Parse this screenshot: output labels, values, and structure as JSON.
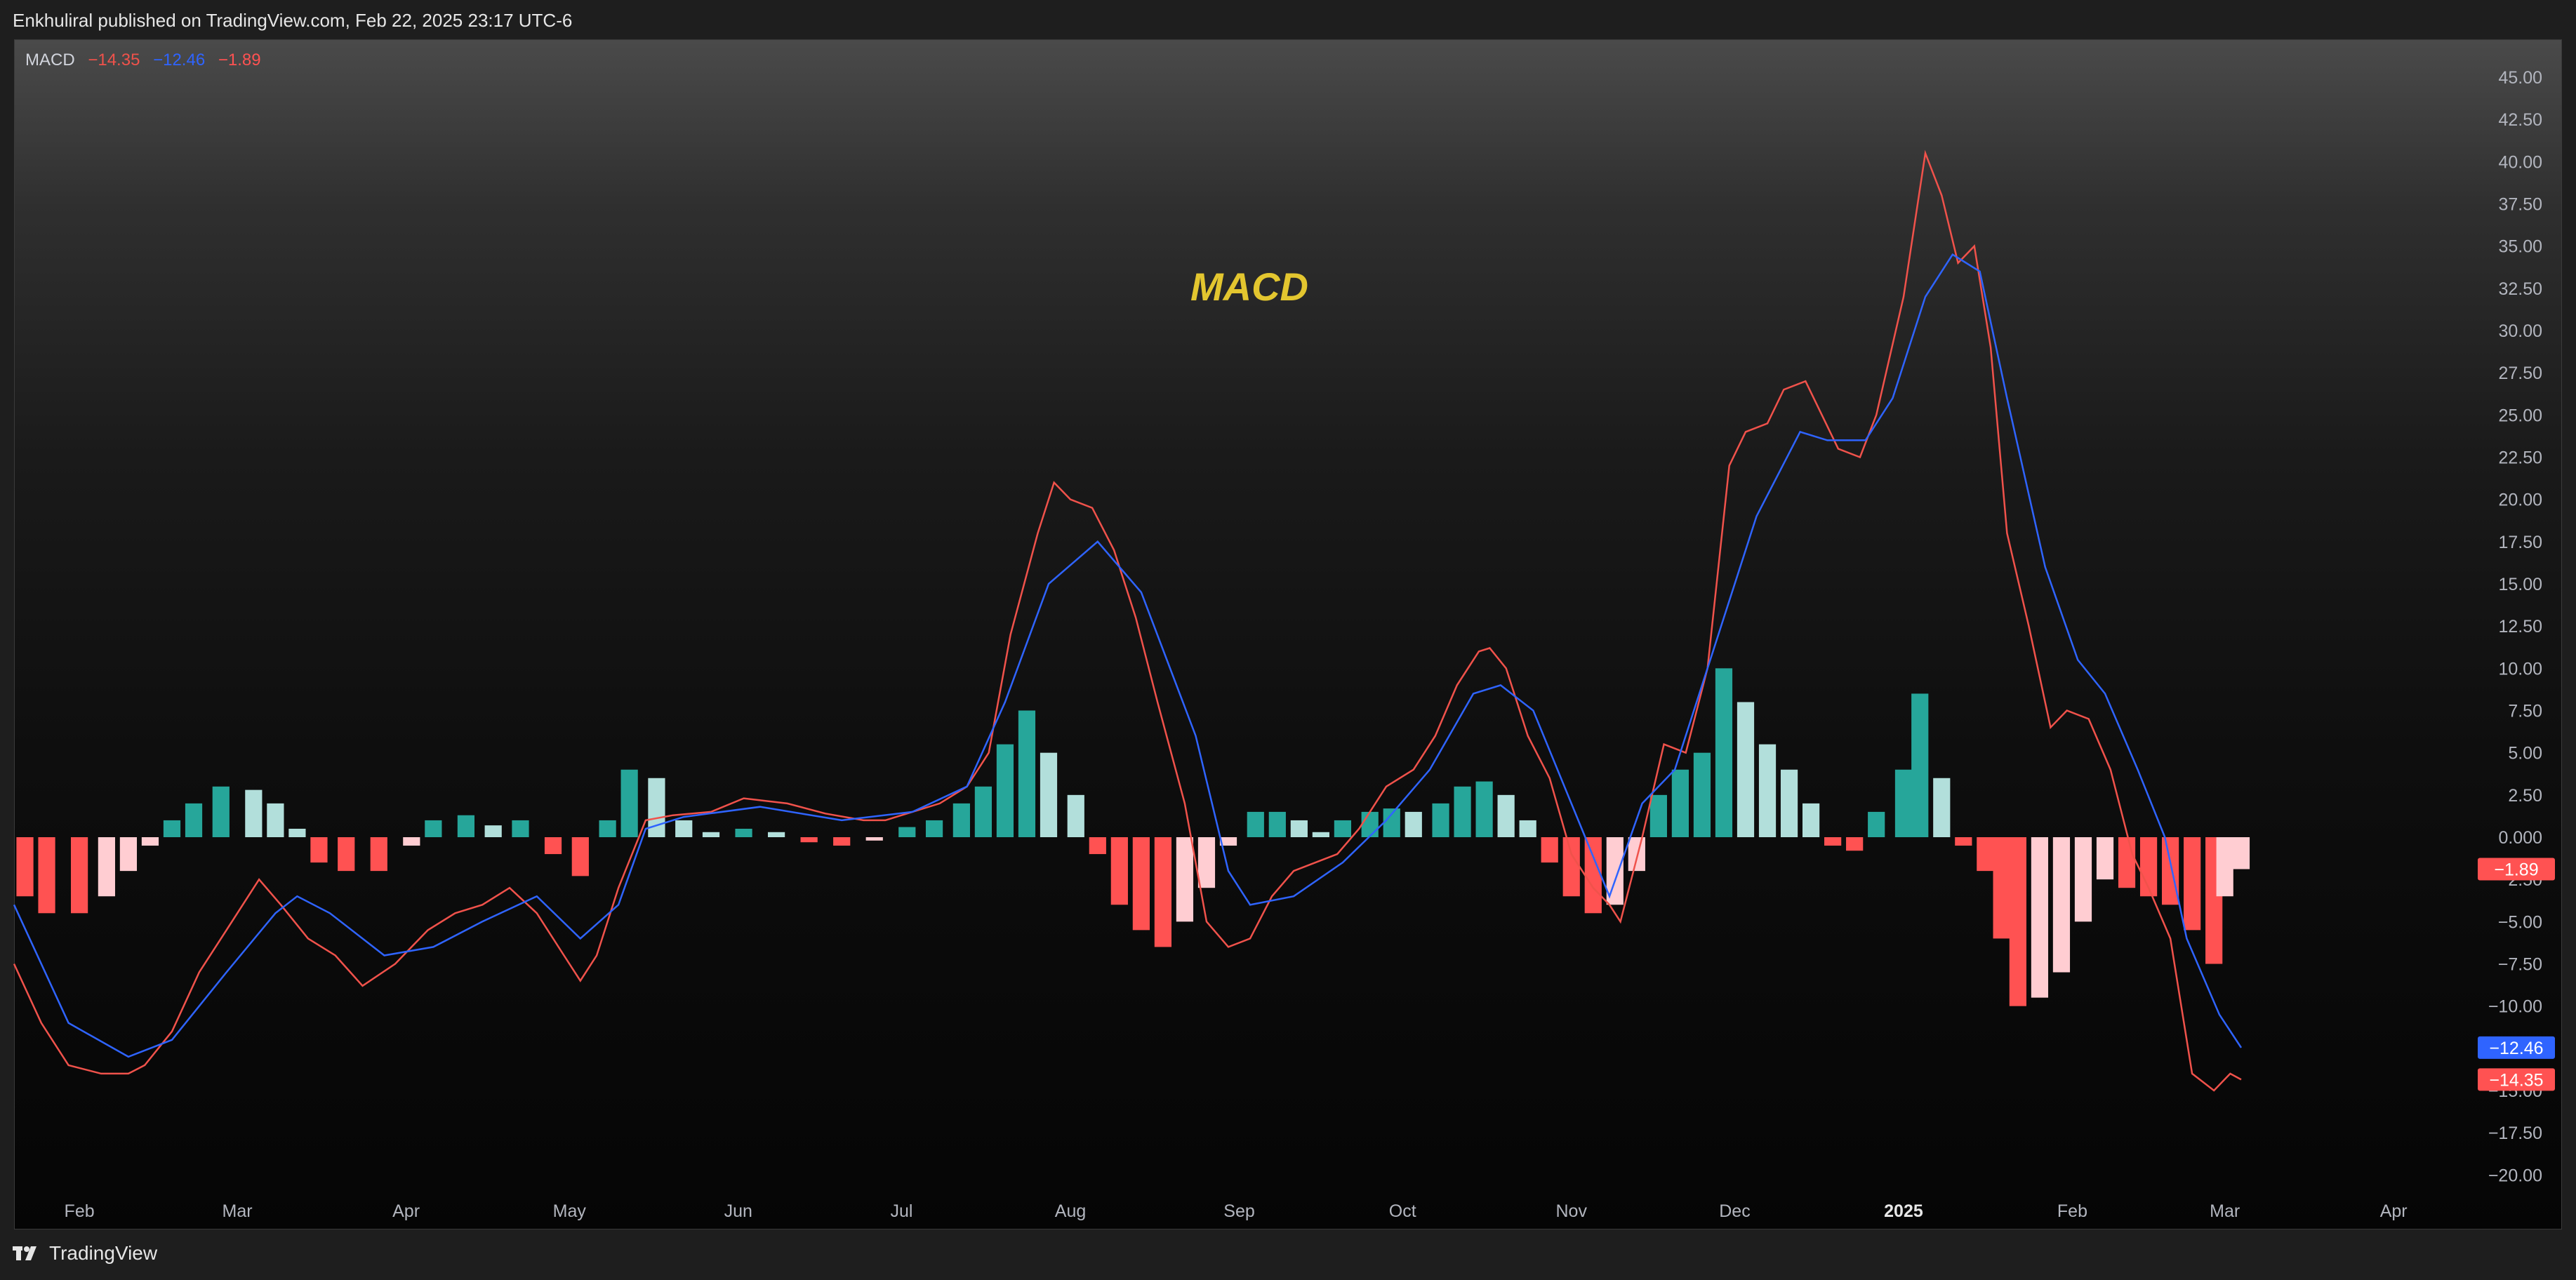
{
  "header": {
    "publish_note": "Enkhuliral published on TradingView.com, Feb 22, 2025 23:17 UTC-6"
  },
  "legend": {
    "name": "MACD",
    "macd_value": "−14.35",
    "signal_value": "−12.46",
    "hist_value": "−1.89"
  },
  "footer": {
    "brand": "TradingView",
    "logo_icon": "tradingview-logo-icon"
  },
  "colors": {
    "macd_line": "#f0524b",
    "signal_line": "#2f64ff",
    "hist_pos_strong": "#26a69a",
    "hist_pos_weak": "#b2dfdb",
    "hist_neg_strong": "#ff5252",
    "hist_neg_weak": "#ffcdd2",
    "title": "#e3c62f"
  },
  "chart_data": {
    "type": "line",
    "title": "MACD",
    "xlabel": "",
    "ylabel": "",
    "ylim": [
      -21,
      45
    ],
    "grid": false,
    "y_ticks": [
      "45.00",
      "42.50",
      "40.00",
      "37.50",
      "35.00",
      "32.50",
      "30.00",
      "27.50",
      "25.00",
      "22.50",
      "20.00",
      "17.50",
      "15.00",
      "12.50",
      "10.00",
      "7.50",
      "5.00",
      "2.50",
      "0.000",
      "−2.50",
      "−5.00",
      "−7.50",
      "−10.00",
      "−12.50",
      "−15.00",
      "−17.50",
      "−20.00"
    ],
    "y_tick_values": [
      45,
      42.5,
      40,
      37.5,
      35,
      32.5,
      30,
      27.5,
      25,
      22.5,
      20,
      17.5,
      15,
      12.5,
      10,
      7.5,
      5,
      2.5,
      0,
      -2.5,
      -5,
      -7.5,
      -10,
      -12.5,
      -15,
      -17.5,
      -20
    ],
    "x_labels": [
      {
        "label": "Feb",
        "x": "2024-02-01"
      },
      {
        "label": "Mar",
        "x": "2024-03-01"
      },
      {
        "label": "Apr",
        "x": "2024-04-01"
      },
      {
        "label": "May",
        "x": "2024-05-01"
      },
      {
        "label": "Jun",
        "x": "2024-06-01"
      },
      {
        "label": "Jul",
        "x": "2024-07-01"
      },
      {
        "label": "Aug",
        "x": "2024-08-01"
      },
      {
        "label": "Sep",
        "x": "2024-09-01"
      },
      {
        "label": "Oct",
        "x": "2024-10-01"
      },
      {
        "label": "Nov",
        "x": "2024-11-01"
      },
      {
        "label": "Dec",
        "x": "2024-12-01"
      },
      {
        "label": "2025",
        "x": "2025-01-01",
        "bold": true
      },
      {
        "label": "Feb",
        "x": "2025-02-01"
      },
      {
        "label": "Mar",
        "x": "2025-03-01"
      },
      {
        "label": "Apr",
        "x": "2025-04-01"
      }
    ],
    "xlim": [
      "2024-01-20",
      "2025-04-10"
    ],
    "price_tags": [
      {
        "text": "−1.89",
        "value": -1.89,
        "color": "#ff5252"
      },
      {
        "text": "−12.46",
        "value": -12.46,
        "color": "#2f64ff"
      },
      {
        "text": "−14.35",
        "value": -14.35,
        "color": "#ff5252"
      }
    ],
    "series": [
      {
        "name": "MACD",
        "color": "#f0524b",
        "points": [
          [
            "2024-01-20",
            -7.5
          ],
          [
            "2024-01-25",
            -11
          ],
          [
            "2024-01-30",
            -13.5
          ],
          [
            "2024-02-05",
            -14
          ],
          [
            "2024-02-10",
            -14
          ],
          [
            "2024-02-13",
            -13.5
          ],
          [
            "2024-02-18",
            -11.5
          ],
          [
            "2024-02-23",
            -8
          ],
          [
            "2024-02-28",
            -5.5
          ],
          [
            "2024-03-05",
            -2.5
          ],
          [
            "2024-03-09",
            -4
          ],
          [
            "2024-03-14",
            -6
          ],
          [
            "2024-03-19",
            -7
          ],
          [
            "2024-03-24",
            -8.8
          ],
          [
            "2024-03-30",
            -7.5
          ],
          [
            "2024-04-05",
            -5.5
          ],
          [
            "2024-04-10",
            -4.5
          ],
          [
            "2024-04-15",
            -4
          ],
          [
            "2024-04-20",
            -3
          ],
          [
            "2024-04-25",
            -4.5
          ],
          [
            "2024-04-30",
            -7
          ],
          [
            "2024-05-03",
            -8.5
          ],
          [
            "2024-05-06",
            -7
          ],
          [
            "2024-05-10",
            -3
          ],
          [
            "2024-05-15",
            1
          ],
          [
            "2024-05-20",
            1.3
          ],
          [
            "2024-05-27",
            1.5
          ],
          [
            "2024-06-02",
            2.3
          ],
          [
            "2024-06-10",
            2
          ],
          [
            "2024-06-17",
            1.4
          ],
          [
            "2024-06-24",
            1
          ],
          [
            "2024-06-28",
            1
          ],
          [
            "2024-07-03",
            1.5
          ],
          [
            "2024-07-08",
            2
          ],
          [
            "2024-07-13",
            3
          ],
          [
            "2024-07-17",
            5
          ],
          [
            "2024-07-21",
            12
          ],
          [
            "2024-07-26",
            18
          ],
          [
            "2024-07-29",
            21
          ],
          [
            "2024-08-01",
            20
          ],
          [
            "2024-08-05",
            19.5
          ],
          [
            "2024-08-09",
            17
          ],
          [
            "2024-08-13",
            13
          ],
          [
            "2024-08-17",
            8
          ],
          [
            "2024-08-22",
            2
          ],
          [
            "2024-08-26",
            -5
          ],
          [
            "2024-08-30",
            -6.5
          ],
          [
            "2024-09-03",
            -6
          ],
          [
            "2024-09-07",
            -3.5
          ],
          [
            "2024-09-11",
            -2
          ],
          [
            "2024-09-15",
            -1.5
          ],
          [
            "2024-09-19",
            -1
          ],
          [
            "2024-09-23",
            0.5
          ],
          [
            "2024-09-28",
            3
          ],
          [
            "2024-10-03",
            4
          ],
          [
            "2024-10-07",
            6
          ],
          [
            "2024-10-11",
            9
          ],
          [
            "2024-10-15",
            11
          ],
          [
            "2024-10-17",
            11.2
          ],
          [
            "2024-10-20",
            10
          ],
          [
            "2024-10-24",
            6
          ],
          [
            "2024-10-28",
            3.5
          ],
          [
            "2024-11-01",
            -1
          ],
          [
            "2024-11-05",
            -3
          ],
          [
            "2024-11-08",
            -4
          ],
          [
            "2024-11-10",
            -5
          ],
          [
            "2024-11-14",
            0
          ],
          [
            "2024-11-18",
            5.5
          ],
          [
            "2024-11-22",
            5
          ],
          [
            "2024-11-26",
            10
          ],
          [
            "2024-11-30",
            22
          ],
          [
            "2024-12-03",
            24
          ],
          [
            "2024-12-07",
            24.5
          ],
          [
            "2024-12-10",
            26.5
          ],
          [
            "2024-12-14",
            27
          ],
          [
            "2024-12-17",
            25
          ],
          [
            "2024-12-20",
            23
          ],
          [
            "2024-12-24",
            22.5
          ],
          [
            "2024-12-27",
            25
          ],
          [
            "2025-01-01",
            32
          ],
          [
            "2025-01-05",
            40.5
          ],
          [
            "2025-01-08",
            38
          ],
          [
            "2025-01-11",
            34
          ],
          [
            "2025-01-14",
            35
          ],
          [
            "2025-01-17",
            29
          ],
          [
            "2025-01-20",
            18
          ],
          [
            "2025-01-24",
            12.5
          ],
          [
            "2025-01-28",
            6.5
          ],
          [
            "2025-01-31",
            7.5
          ],
          [
            "2025-02-04",
            7
          ],
          [
            "2025-02-08",
            4
          ],
          [
            "2025-02-12",
            -1
          ],
          [
            "2025-02-15",
            -3
          ],
          [
            "2025-02-19",
            -6
          ],
          [
            "2025-02-23",
            -14
          ],
          [
            "2025-02-27",
            -15
          ],
          [
            "2025-03-02",
            -14
          ],
          [
            "2025-03-04",
            -14.35
          ]
        ]
      },
      {
        "name": "Signal",
        "color": "#2f64ff",
        "points": [
          [
            "2024-01-20",
            -4
          ],
          [
            "2024-01-30",
            -11
          ],
          [
            "2024-02-10",
            -13
          ],
          [
            "2024-02-18",
            -12
          ],
          [
            "2024-02-28",
            -8
          ],
          [
            "2024-03-08",
            -4.5
          ],
          [
            "2024-03-12",
            -3.5
          ],
          [
            "2024-03-18",
            -4.5
          ],
          [
            "2024-03-28",
            -7
          ],
          [
            "2024-04-06",
            -6.5
          ],
          [
            "2024-04-15",
            -5
          ],
          [
            "2024-04-25",
            -3.5
          ],
          [
            "2024-05-03",
            -6
          ],
          [
            "2024-05-10",
            -4
          ],
          [
            "2024-05-15",
            0.5
          ],
          [
            "2024-05-22",
            1.2
          ],
          [
            "2024-06-05",
            1.8
          ],
          [
            "2024-06-20",
            1
          ],
          [
            "2024-07-03",
            1.5
          ],
          [
            "2024-07-13",
            3
          ],
          [
            "2024-07-20",
            8
          ],
          [
            "2024-07-28",
            15
          ],
          [
            "2024-08-06",
            17.5
          ],
          [
            "2024-08-14",
            14.5
          ],
          [
            "2024-08-24",
            6
          ],
          [
            "2024-08-30",
            -2
          ],
          [
            "2024-09-03",
            -4
          ],
          [
            "2024-09-11",
            -3.5
          ],
          [
            "2024-09-20",
            -1.5
          ],
          [
            "2024-09-28",
            1
          ],
          [
            "2024-10-06",
            4
          ],
          [
            "2024-10-14",
            8.5
          ],
          [
            "2024-10-19",
            9
          ],
          [
            "2024-10-25",
            7.5
          ],
          [
            "2024-11-01",
            2
          ],
          [
            "2024-11-08",
            -3.5
          ],
          [
            "2024-11-14",
            2
          ],
          [
            "2024-11-20",
            4
          ],
          [
            "2024-11-28",
            12
          ],
          [
            "2024-12-05",
            19
          ],
          [
            "2024-12-13",
            24
          ],
          [
            "2024-12-18",
            23.5
          ],
          [
            "2024-12-25",
            23.5
          ],
          [
            "2024-12-30",
            26
          ],
          [
            "2025-01-05",
            32
          ],
          [
            "2025-01-10",
            34.5
          ],
          [
            "2025-01-15",
            33.5
          ],
          [
            "2025-01-20",
            26
          ],
          [
            "2025-01-27",
            16
          ],
          [
            "2025-02-02",
            10.5
          ],
          [
            "2025-02-07",
            8.5
          ],
          [
            "2025-02-13",
            4
          ],
          [
            "2025-02-18",
            0
          ],
          [
            "2025-02-22",
            -6
          ],
          [
            "2025-02-28",
            -10.5
          ],
          [
            "2025-03-04",
            -12.46
          ]
        ]
      },
      {
        "name": "Histogram",
        "type": "bar",
        "points": [
          [
            "2024-01-22",
            -3.5
          ],
          [
            "2024-01-26",
            -4.5
          ],
          [
            "2024-02-01",
            -4.5
          ],
          [
            "2024-02-06",
            -3.5
          ],
          [
            "2024-02-10",
            -2
          ],
          [
            "2024-02-14",
            -0.5
          ],
          [
            "2024-02-18",
            1
          ],
          [
            "2024-02-22",
            2
          ],
          [
            "2024-02-27",
            3
          ],
          [
            "2024-03-04",
            2.8
          ],
          [
            "2024-03-08",
            2
          ],
          [
            "2024-03-12",
            0.5
          ],
          [
            "2024-03-16",
            -1.5
          ],
          [
            "2024-03-21",
            -2
          ],
          [
            "2024-03-27",
            -2
          ],
          [
            "2024-04-02",
            -0.5
          ],
          [
            "2024-04-06",
            1
          ],
          [
            "2024-04-12",
            1.3
          ],
          [
            "2024-04-17",
            0.7
          ],
          [
            "2024-04-22",
            1
          ],
          [
            "2024-04-28",
            -1
          ],
          [
            "2024-05-03",
            -2.3
          ],
          [
            "2024-05-08",
            1
          ],
          [
            "2024-05-12",
            4
          ],
          [
            "2024-05-17",
            3.5
          ],
          [
            "2024-05-22",
            1
          ],
          [
            "2024-05-27",
            0.3
          ],
          [
            "2024-06-02",
            0.5
          ],
          [
            "2024-06-08",
            0.3
          ],
          [
            "2024-06-14",
            -0.3
          ],
          [
            "2024-06-20",
            -0.5
          ],
          [
            "2024-06-26",
            -0.2
          ],
          [
            "2024-07-02",
            0.6
          ],
          [
            "2024-07-07",
            1
          ],
          [
            "2024-07-12",
            2
          ],
          [
            "2024-07-16",
            3
          ],
          [
            "2024-07-20",
            5.5
          ],
          [
            "2024-07-24",
            7.5
          ],
          [
            "2024-07-28",
            5
          ],
          [
            "2024-08-02",
            2.5
          ],
          [
            "2024-08-06",
            -1
          ],
          [
            "2024-08-10",
            -4
          ],
          [
            "2024-08-14",
            -5.5
          ],
          [
            "2024-08-18",
            -6.5
          ],
          [
            "2024-08-22",
            -5
          ],
          [
            "2024-08-26",
            -3
          ],
          [
            "2024-08-30",
            -0.5
          ],
          [
            "2024-09-04",
            1.5
          ],
          [
            "2024-09-08",
            1.5
          ],
          [
            "2024-09-12",
            1
          ],
          [
            "2024-09-16",
            0.3
          ],
          [
            "2024-09-20",
            1
          ],
          [
            "2024-09-25",
            1.5
          ],
          [
            "2024-09-29",
            1.7
          ],
          [
            "2024-10-03",
            1.5
          ],
          [
            "2024-10-08",
            2
          ],
          [
            "2024-10-12",
            3
          ],
          [
            "2024-10-16",
            3.3
          ],
          [
            "2024-10-20",
            2.5
          ],
          [
            "2024-10-24",
            1
          ],
          [
            "2024-10-28",
            -1.5
          ],
          [
            "2024-11-01",
            -3.5
          ],
          [
            "2024-11-05",
            -4.5
          ],
          [
            "2024-11-09",
            -4
          ],
          [
            "2024-11-13",
            -2
          ],
          [
            "2024-11-17",
            2.5
          ],
          [
            "2024-11-21",
            4
          ],
          [
            "2024-11-25",
            5
          ],
          [
            "2024-11-29",
            10
          ],
          [
            "2024-12-03",
            8
          ],
          [
            "2024-12-07",
            5.5
          ],
          [
            "2024-12-11",
            4
          ],
          [
            "2024-12-15",
            2
          ],
          [
            "2024-12-19",
            -0.5
          ],
          [
            "2024-12-23",
            -0.8
          ],
          [
            "2024-12-27",
            1.5
          ],
          [
            "2025-01-01",
            4
          ],
          [
            "2025-01-04",
            8.5
          ],
          [
            "2025-01-08",
            3.5
          ],
          [
            "2025-01-12",
            -0.5
          ],
          [
            "2025-01-16",
            -2
          ],
          [
            "2025-01-19",
            -6
          ],
          [
            "2025-01-22",
            -10
          ],
          [
            "2025-01-26",
            -9.5
          ],
          [
            "2025-01-30",
            -8
          ],
          [
            "2025-02-03",
            -5
          ],
          [
            "2025-02-07",
            -2.5
          ],
          [
            "2025-02-11",
            -3
          ],
          [
            "2025-02-15",
            -3.5
          ],
          [
            "2025-02-19",
            -4
          ],
          [
            "2025-02-23",
            -5.5
          ],
          [
            "2025-02-27",
            -7.5
          ],
          [
            "2025-03-01",
            -3.5
          ],
          [
            "2025-03-04",
            -1.89
          ]
        ]
      }
    ]
  }
}
